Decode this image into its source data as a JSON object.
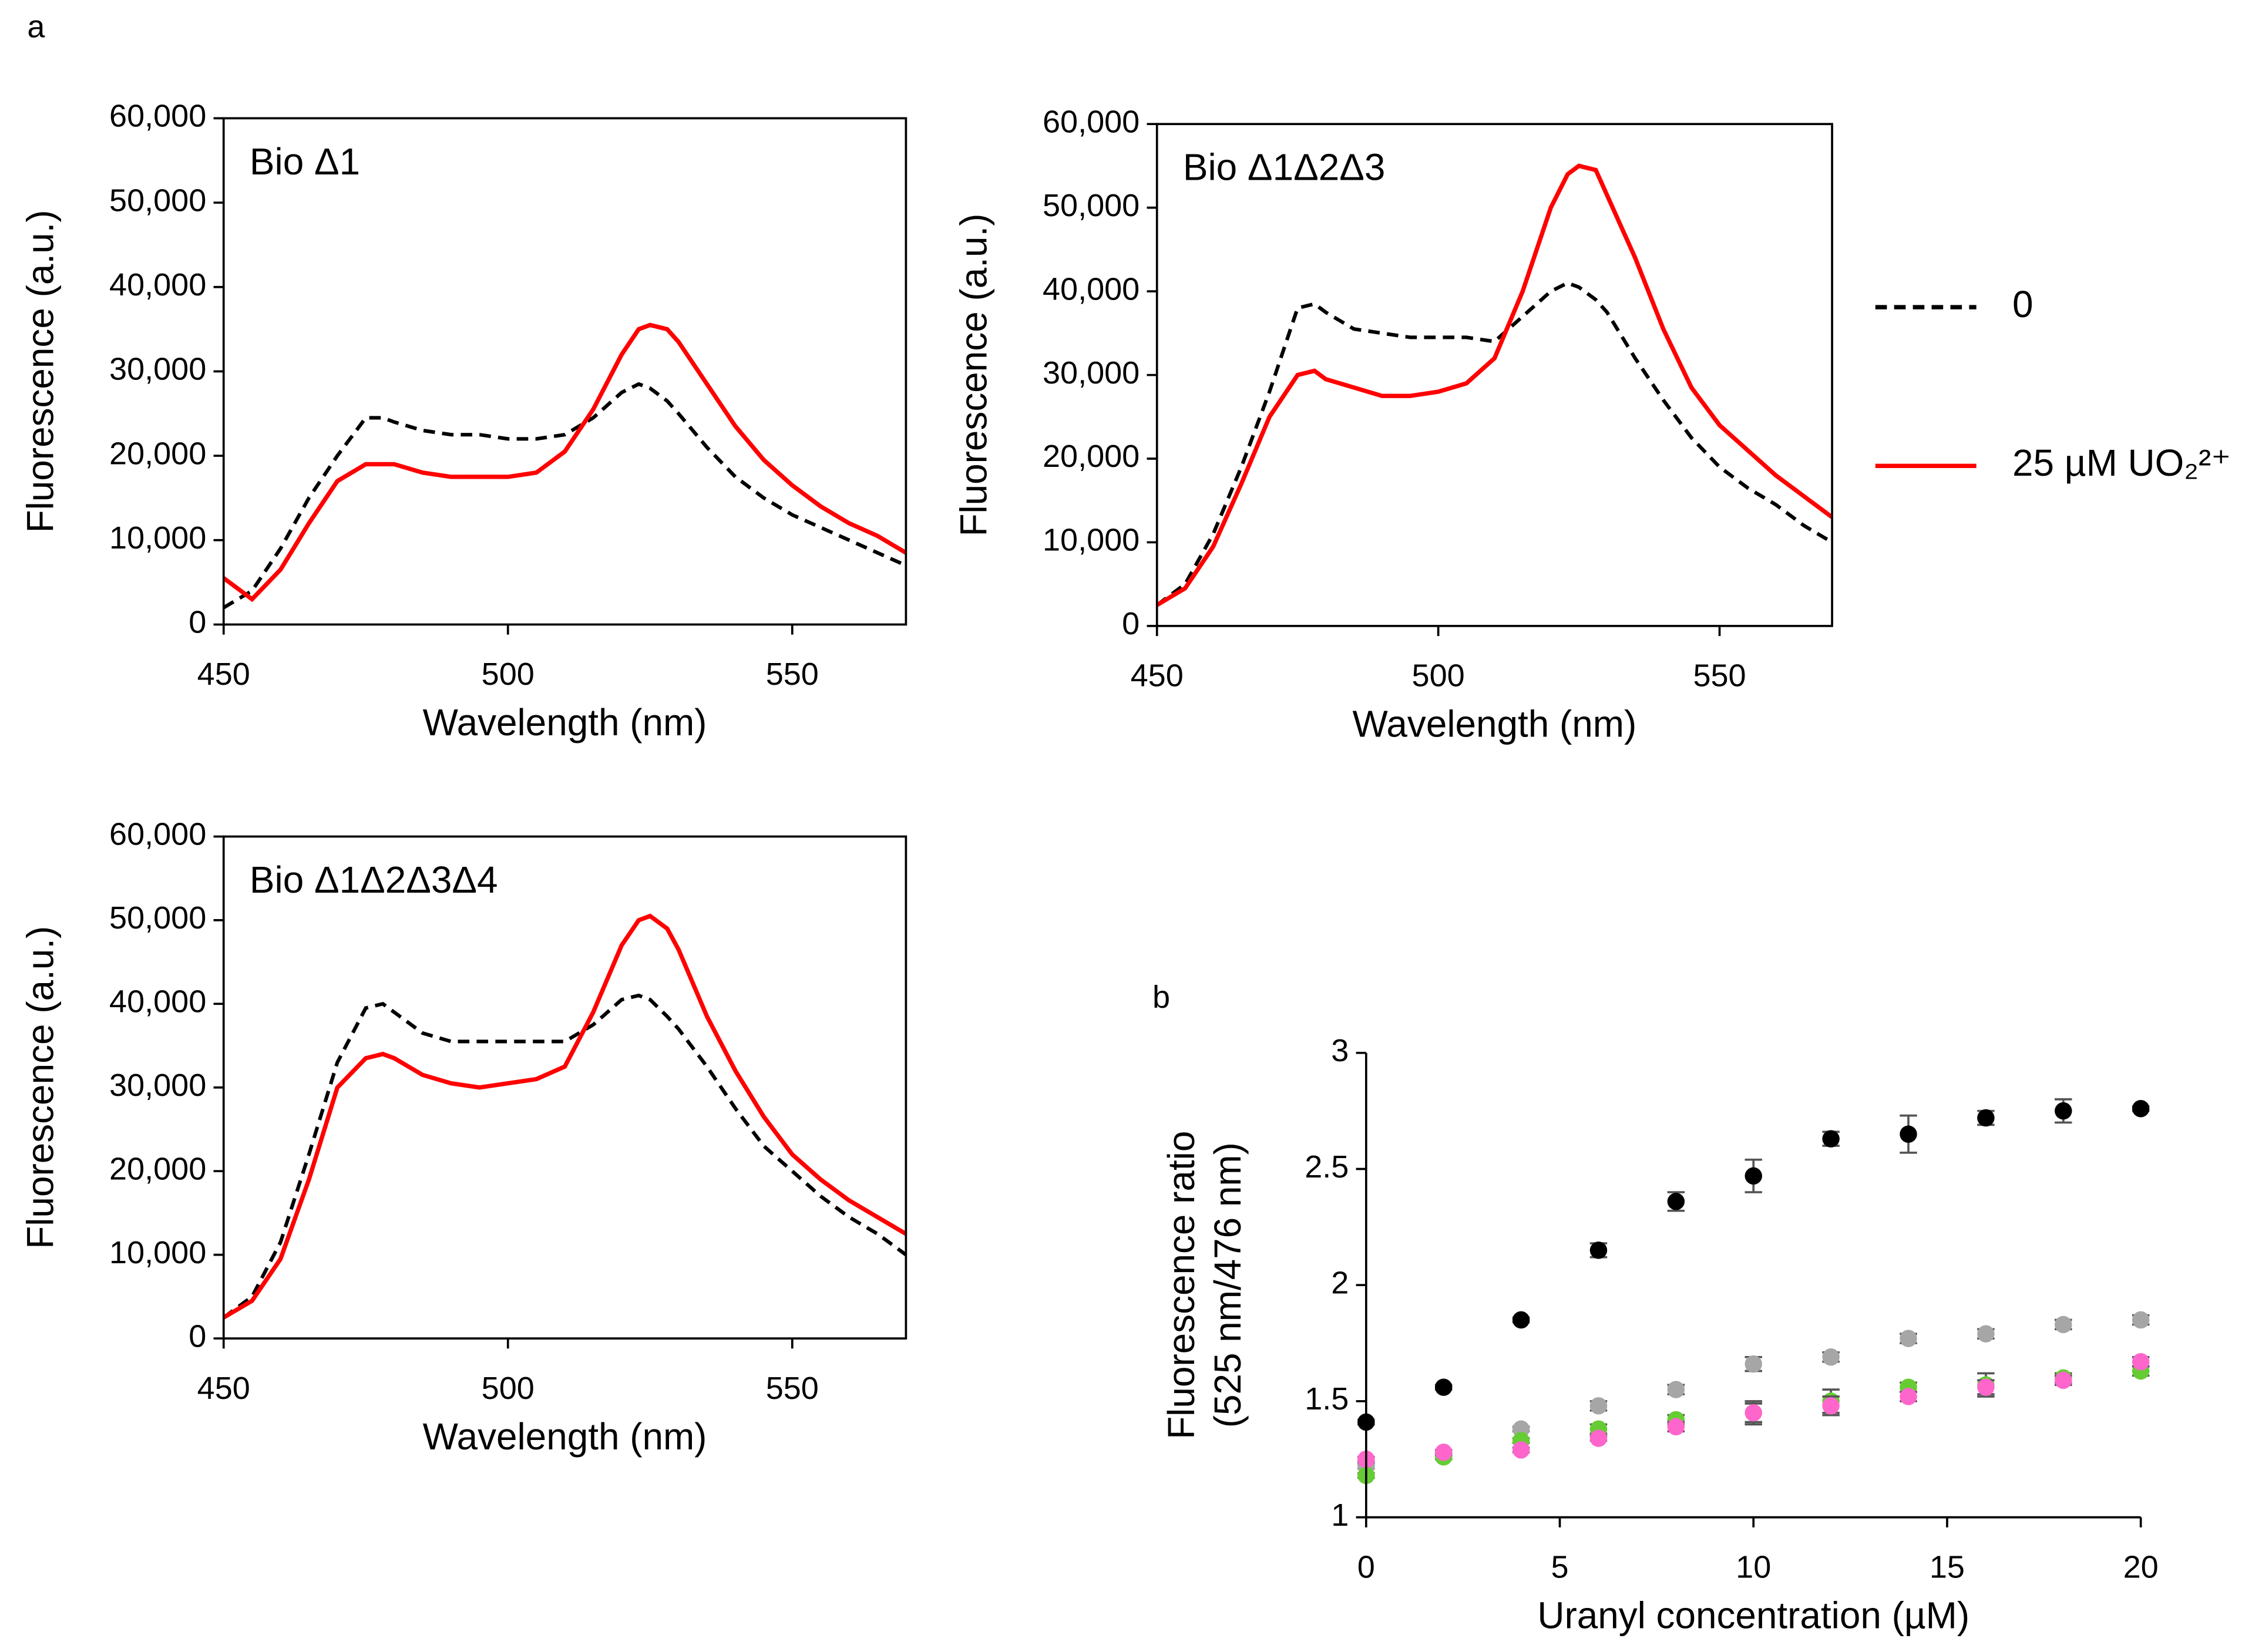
{
  "chart_data": [
    {
      "type": "line",
      "label": "a",
      "annotation": "Bio Δ1",
      "xlabel": "Wavelength (nm)",
      "ylabel": "Fluorescence (a.u.)",
      "xlim": [
        450,
        570
      ],
      "xticks": [
        450,
        500,
        550
      ],
      "ylim": [
        0,
        60000
      ],
      "yticks": [
        0,
        {
          "value": 10000,
          "label": "10,000"
        },
        {
          "value": 20000,
          "label": "20,000"
        },
        {
          "value": 30000,
          "label": "30,000"
        },
        {
          "value": 40000,
          "label": "40,000"
        },
        {
          "value": 50000,
          "label": "50,000"
        },
        {
          "value": 60000,
          "label": "60,000"
        }
      ],
      "x": [
        450,
        455,
        460,
        465,
        470,
        475,
        478,
        480,
        485,
        490,
        495,
        500,
        505,
        510,
        515,
        520,
        523,
        525,
        528,
        530,
        535,
        540,
        545,
        550,
        555,
        560,
        565,
        570
      ],
      "series": [
        {
          "name": "0",
          "color": "#000000",
          "dash": true,
          "values": [
            2000,
            4000,
            9000,
            15000,
            20000,
            24500,
            24500,
            24000,
            23000,
            22500,
            22500,
            22000,
            22000,
            22500,
            24500,
            27500,
            28500,
            28000,
            26500,
            25000,
            21000,
            17500,
            15000,
            13000,
            11500,
            10000,
            8500,
            7000
          ]
        },
        {
          "name": "25 µM UO₂²⁺",
          "color": "#ff0000",
          "dash": false,
          "values": [
            5500,
            3000,
            6500,
            12000,
            17000,
            19000,
            19000,
            19000,
            18000,
            17500,
            17500,
            17500,
            18000,
            20500,
            25500,
            32000,
            35000,
            35500,
            35000,
            33500,
            28500,
            23500,
            19500,
            16500,
            14000,
            12000,
            10500,
            8500
          ]
        }
      ]
    },
    {
      "type": "line",
      "annotation": "Bio Δ1Δ2Δ3",
      "xlabel": "Wavelength (nm)",
      "ylabel": "Fluorescence (a.u.)",
      "xlim": [
        450,
        570
      ],
      "xticks": [
        450,
        500,
        550
      ],
      "ylim": [
        0,
        60000
      ],
      "yticks": [
        0,
        {
          "value": 10000,
          "label": "10,000"
        },
        {
          "value": 20000,
          "label": "20,000"
        },
        {
          "value": 30000,
          "label": "30,000"
        },
        {
          "value": 40000,
          "label": "40,000"
        },
        {
          "value": 50000,
          "label": "50,000"
        },
        {
          "value": 60000,
          "label": "60,000"
        }
      ],
      "x": [
        450,
        455,
        460,
        465,
        470,
        475,
        478,
        480,
        485,
        490,
        495,
        500,
        505,
        510,
        515,
        520,
        523,
        525,
        528,
        530,
        535,
        540,
        545,
        550,
        555,
        560,
        565,
        570
      ],
      "series": [
        {
          "color": "#000000",
          "dash": true,
          "values": [
            2500,
            5000,
            11000,
            19000,
            28000,
            38000,
            38500,
            37500,
            35500,
            35000,
            34500,
            34500,
            34500,
            34000,
            37000,
            40000,
            41000,
            40500,
            39000,
            37500,
            32000,
            27000,
            22500,
            19000,
            16500,
            14500,
            12000,
            10000
          ]
        },
        {
          "color": "#ff0000",
          "dash": false,
          "values": [
            2500,
            4500,
            9500,
            17000,
            25000,
            30000,
            30500,
            29500,
            28500,
            27500,
            27500,
            28000,
            29000,
            32000,
            40000,
            50000,
            54000,
            55000,
            54500,
            51500,
            44000,
            35500,
            28500,
            24000,
            21000,
            18000,
            15500,
            13000
          ]
        }
      ]
    },
    {
      "type": "line",
      "annotation": "Bio Δ1Δ2Δ3Δ4",
      "xlabel": "Wavelength (nm)",
      "ylabel": "Fluorescence (a.u.)",
      "xlim": [
        450,
        570
      ],
      "xticks": [
        450,
        500,
        550
      ],
      "ylim": [
        0,
        60000
      ],
      "yticks": [
        0,
        {
          "value": 10000,
          "label": "10,000"
        },
        {
          "value": 20000,
          "label": "20,000"
        },
        {
          "value": 30000,
          "label": "30,000"
        },
        {
          "value": 40000,
          "label": "40,000"
        },
        {
          "value": 50000,
          "label": "50,000"
        },
        {
          "value": 60000,
          "label": "60,000"
        }
      ],
      "x": [
        450,
        455,
        460,
        465,
        470,
        475,
        478,
        480,
        485,
        490,
        495,
        500,
        505,
        510,
        515,
        520,
        523,
        525,
        528,
        530,
        535,
        540,
        545,
        550,
        555,
        560,
        565,
        570
      ],
      "series": [
        {
          "color": "#000000",
          "dash": true,
          "values": [
            2500,
            5000,
            11500,
            22000,
            33000,
            39500,
            40000,
            39000,
            36500,
            35500,
            35500,
            35500,
            35500,
            35500,
            37500,
            40500,
            41000,
            40500,
            38500,
            37000,
            32500,
            27500,
            23000,
            20000,
            17000,
            14500,
            12500,
            10000
          ]
        },
        {
          "color": "#ff0000",
          "dash": false,
          "values": [
            2500,
            4500,
            9500,
            19000,
            30000,
            33500,
            34000,
            33500,
            31500,
            30500,
            30000,
            30500,
            31000,
            32500,
            39000,
            47000,
            50000,
            50500,
            49000,
            46500,
            38500,
            32000,
            26500,
            22000,
            19000,
            16500,
            14500,
            12500
          ]
        }
      ]
    },
    {
      "type": "scatter",
      "label": "b",
      "xlabel": "Uranyl concentration (µM)",
      "ylabel": [
        "Fluorescence ratio",
        "(525 nm/476 nm)"
      ],
      "xlim": [
        0,
        20
      ],
      "xticks": [
        0,
        5,
        10,
        15,
        20
      ],
      "ylim": [
        1,
        3
      ],
      "yticks": [
        1,
        1.5,
        2,
        2.5,
        3
      ],
      "x": [
        0,
        2,
        4,
        6,
        8,
        10,
        12,
        14,
        16,
        18,
        20
      ],
      "series": [
        {
          "color": "#a6a6a6",
          "values": [
            1.22,
            1.27,
            1.38,
            1.48,
            1.55,
            1.66,
            1.69,
            1.77,
            1.79,
            1.83,
            1.85
          ],
          "errors": [
            0.01,
            0.01,
            0.01,
            0.02,
            0.02,
            0.03,
            0.02,
            0.02,
            0.02,
            0.02,
            0.02
          ]
        },
        {
          "color": "#66cc33",
          "values": [
            1.18,
            1.26,
            1.33,
            1.38,
            1.42,
            1.45,
            1.5,
            1.56,
            1.57,
            1.6,
            1.63
          ],
          "errors": [
            0.01,
            0.01,
            0.01,
            0.02,
            0.02,
            0.05,
            0.05,
            0.02,
            0.05,
            0.02,
            0.02
          ]
        },
        {
          "color": "#ff66cc",
          "values": [
            1.25,
            1.28,
            1.29,
            1.34,
            1.39,
            1.45,
            1.48,
            1.52,
            1.56,
            1.59,
            1.67
          ],
          "errors": [
            0.01,
            0.01,
            0.01,
            0.01,
            0.02,
            0.04,
            0.04,
            0.02,
            0.03,
            0.02,
            0.02
          ]
        },
        {
          "color": "#000000",
          "values": [
            1.41,
            1.56,
            1.85,
            2.15,
            2.36,
            2.47,
            2.63,
            2.65,
            2.72,
            2.75,
            2.76
          ],
          "errors": [
            0.01,
            0.01,
            0.01,
            0.03,
            0.04,
            0.07,
            0.03,
            0.08,
            0.03,
            0.05,
            0.01
          ]
        }
      ]
    }
  ]
}
